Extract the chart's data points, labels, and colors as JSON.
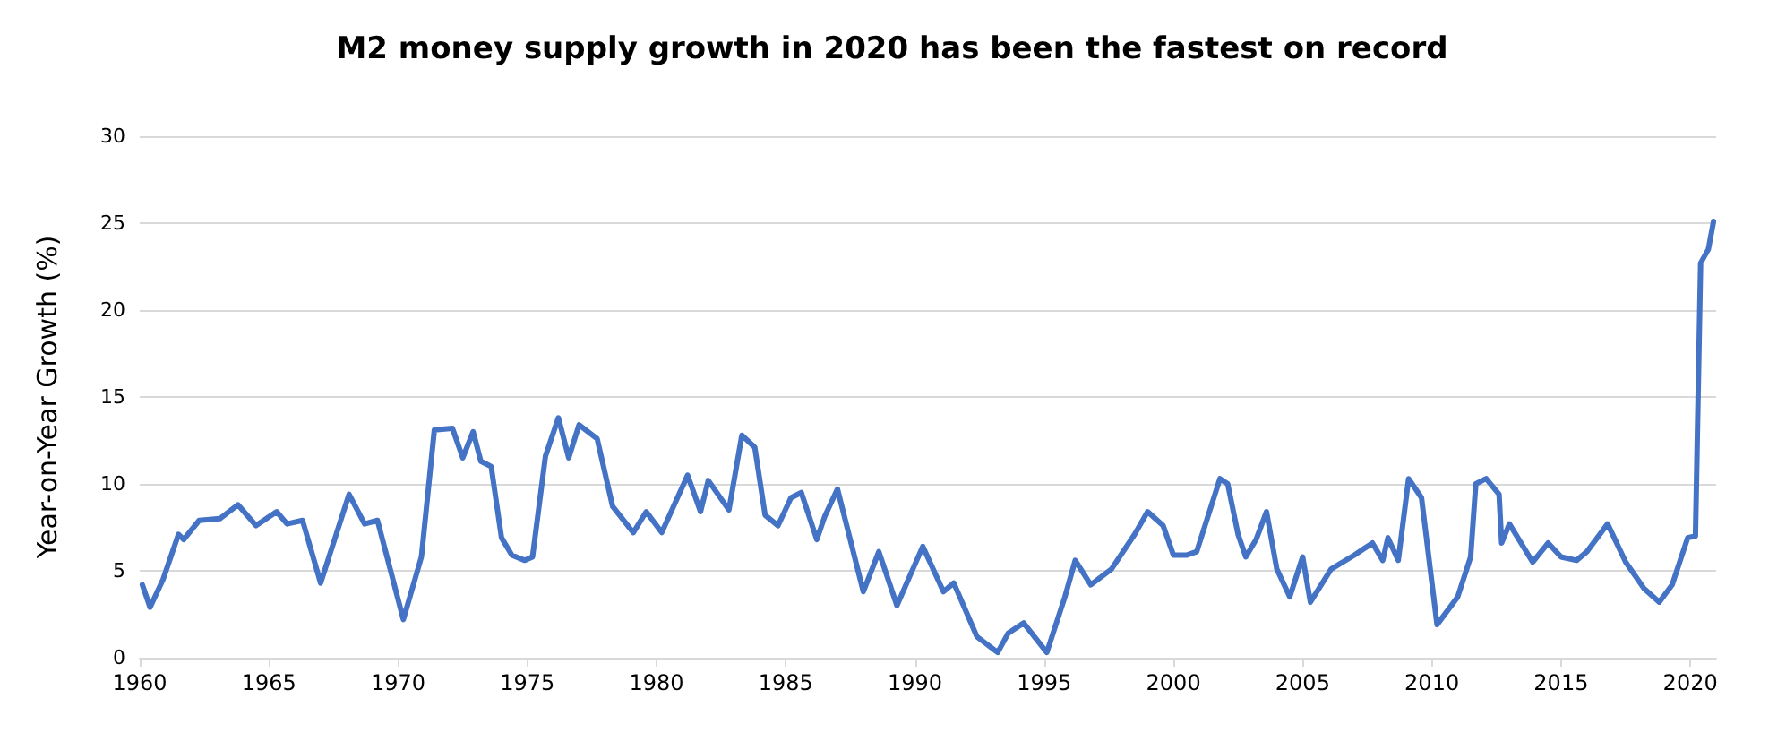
{
  "chart_data": {
    "type": "line",
    "title": "M2 money supply growth in 2020 has been the fastest on record",
    "ylabel": "Year-on-Year Growth (%)",
    "xlim": [
      1960,
      2021
    ],
    "xticks": [
      1960,
      1965,
      1970,
      1975,
      1980,
      1985,
      1990,
      1995,
      2000,
      2005,
      2010,
      2015,
      2020
    ],
    "ylim": [
      0,
      30
    ],
    "yticks": [
      0,
      5,
      10,
      15,
      20,
      25,
      30
    ],
    "grid": "y",
    "marker": "none",
    "line_style": "solid",
    "series": [
      {
        "color": "#4472c4",
        "x": [
          1960.1,
          1960.4,
          1960.9,
          1961.5,
          1961.7,
          1962.3,
          1963.1,
          1963.8,
          1964.5,
          1965.3,
          1965.7,
          1966.3,
          1967.0,
          1968.1,
          1968.7,
          1969.2,
          1970.2,
          1970.9,
          1971.4,
          1972.1,
          1972.5,
          1972.9,
          1973.2,
          1973.6,
          1974.0,
          1974.4,
          1974.9,
          1975.2,
          1975.7,
          1976.2,
          1976.6,
          1977.0,
          1977.7,
          1978.3,
          1979.1,
          1979.6,
          1980.2,
          1981.2,
          1981.7,
          1982.0,
          1982.8,
          1983.3,
          1983.8,
          1984.2,
          1984.7,
          1985.2,
          1985.6,
          1986.2,
          1986.5,
          1987.0,
          1988.0,
          1988.6,
          1989.3,
          1990.3,
          1991.1,
          1991.5,
          1992.4,
          1993.2,
          1993.6,
          1994.2,
          1995.1,
          1995.8,
          1996.2,
          1996.8,
          1997.6,
          1998.5,
          1999.0,
          1999.6,
          2000.0,
          2000.5,
          2000.9,
          2001.8,
          2002.1,
          2002.5,
          2002.8,
          2003.2,
          2003.6,
          2004.0,
          2004.5,
          2005.0,
          2005.3,
          2006.1,
          2007.0,
          2007.7,
          2008.1,
          2008.3,
          2008.7,
          2009.1,
          2009.6,
          2010.2,
          2011.0,
          2011.5,
          2011.7,
          2012.1,
          2012.6,
          2012.7,
          2013.0,
          2013.9,
          2014.5,
          2015.0,
          2015.6,
          2016.0,
          2016.8,
          2017.5,
          2018.2,
          2018.8,
          2019.3,
          2019.9,
          2020.2,
          2020.4,
          2020.7,
          2020.9
        ],
        "values": [
          4.2,
          2.9,
          4.5,
          7.1,
          6.8,
          7.9,
          8.0,
          8.8,
          7.6,
          8.4,
          7.7,
          7.9,
          4.3,
          9.4,
          7.7,
          7.9,
          2.2,
          5.8,
          13.1,
          13.2,
          11.5,
          13.0,
          11.3,
          11.0,
          6.9,
          5.9,
          5.6,
          5.8,
          11.6,
          13.8,
          11.5,
          13.4,
          12.6,
          8.7,
          7.2,
          8.4,
          7.2,
          10.5,
          8.4,
          10.2,
          8.5,
          12.8,
          12.1,
          8.2,
          7.6,
          9.2,
          9.5,
          6.8,
          8.1,
          9.7,
          3.8,
          6.1,
          3.0,
          6.4,
          3.8,
          4.3,
          1.2,
          0.3,
          1.4,
          2.0,
          0.3,
          3.5,
          5.6,
          4.2,
          5.1,
          7.1,
          8.4,
          7.6,
          5.9,
          5.9,
          6.1,
          10.3,
          10.0,
          7.1,
          5.8,
          6.8,
          8.4,
          5.1,
          3.5,
          5.8,
          3.2,
          5.1,
          5.9,
          6.6,
          5.6,
          6.9,
          5.6,
          10.3,
          9.2,
          1.9,
          3.5,
          5.8,
          10.0,
          10.3,
          9.4,
          6.6,
          7.7,
          5.5,
          6.6,
          5.8,
          5.6,
          6.1,
          7.7,
          5.5,
          4.0,
          3.2,
          4.2,
          6.9,
          7.0,
          22.7,
          23.5,
          25.1
        ]
      }
    ]
  }
}
